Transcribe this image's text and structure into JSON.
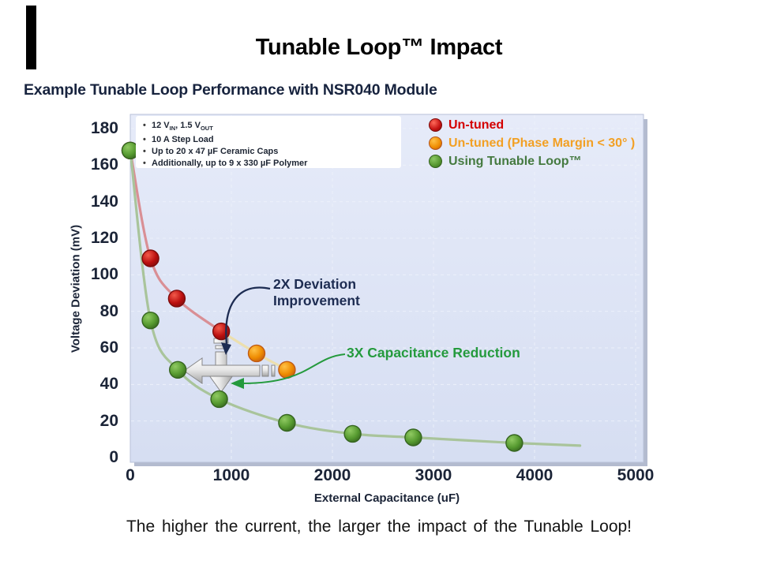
{
  "slide": {
    "title": "Tunable Loop™ Impact",
    "subtitle": "Example Tunable Loop Performance with NSR040 Module",
    "caption": "The higher the current, the larger the impact of the Tunable Loop!"
  },
  "conditions_box": {
    "bullets": [
      [
        {
          "t": "12 V"
        },
        {
          "s": "IN"
        },
        {
          "t": ", 1.5 V"
        },
        {
          "s": "OUT"
        }
      ],
      [
        {
          "t": "10 A Step Load"
        }
      ],
      [
        {
          "t": "Up to 20 x 47 µF Ceramic Caps"
        }
      ],
      [
        {
          "t": "Additionally, up to 9 x 330 µF Polymer"
        }
      ]
    ]
  },
  "legend": {
    "items": [
      {
        "label": "Un-tuned",
        "text_color": "#d40000",
        "sphere": [
          "#ff6a5a",
          "#c41212",
          "#7c0a0a"
        ]
      },
      {
        "label": "Un-tuned (Phase Margin < 30° )",
        "text_color": "#f2a024",
        "sphere": [
          "#ffc145",
          "#ee8b00",
          "#b4541c"
        ]
      },
      {
        "label": "Using Tunable Loop™",
        "text_color": "#457a40",
        "sphere": [
          "#8cc863",
          "#55962f",
          "#33611e"
        ]
      }
    ]
  },
  "annotations": {
    "deviation": {
      "lines": [
        "2X Deviation",
        "Improvement"
      ],
      "color": "#1d2c52"
    },
    "capacitance": {
      "label": "3X Capacitance Reduction",
      "color": "#249a3d"
    }
  },
  "chart_data": {
    "type": "line",
    "title": "",
    "xlabel": "External Capacitance (uF)",
    "ylabel": "Voltage Deviation (mV)",
    "xlim": [
      0,
      5000
    ],
    "ylim": [
      0,
      180
    ],
    "x_ticks": [
      0,
      1000,
      2000,
      3000,
      4000,
      5000
    ],
    "y_ticks": [
      0,
      20,
      40,
      60,
      80,
      100,
      120,
      140,
      160,
      180
    ],
    "grid": true,
    "legend_position": "top-right",
    "series": [
      {
        "name": "Un-tuned",
        "line_color": "#d98f95",
        "dot_colors": [
          "#f25a4a",
          "#bb0f0f",
          "#7d0c0c"
        ],
        "line": [
          [
            0,
            168
          ],
          [
            200,
            109
          ],
          [
            460,
            87
          ],
          [
            900,
            69
          ]
        ],
        "dots": [
          [
            0,
            168
          ],
          [
            200,
            109
          ],
          [
            460,
            87
          ],
          [
            900,
            69
          ]
        ]
      },
      {
        "name": "Un-tuned (Phase Margin < 30° )",
        "line_color": "#ecdfae",
        "dot_colors": [
          "#ffc145",
          "#ee8b00",
          "#c05a14"
        ],
        "line": [
          [
            900,
            69
          ],
          [
            1250,
            57
          ],
          [
            1550,
            48
          ]
        ],
        "dots": [
          [
            1250,
            57
          ],
          [
            1550,
            48
          ]
        ]
      },
      {
        "name": "Using Tunable Loop™",
        "line_color": "#a9c49b",
        "dot_colors": [
          "#90ca62",
          "#55992f",
          "#35641f"
        ],
        "line": [
          [
            0,
            168
          ],
          [
            200,
            75
          ],
          [
            470,
            48
          ],
          [
            880,
            32
          ],
          [
            1550,
            19
          ],
          [
            2200,
            13
          ],
          [
            2800,
            11
          ],
          [
            3800,
            8
          ],
          [
            4450,
            6.5
          ]
        ],
        "dots": [
          [
            0,
            168
          ],
          [
            200,
            75
          ],
          [
            470,
            48
          ],
          [
            880,
            32
          ],
          [
            1550,
            19
          ],
          [
            2200,
            13
          ],
          [
            2800,
            11
          ],
          [
            3800,
            8
          ]
        ]
      }
    ]
  }
}
